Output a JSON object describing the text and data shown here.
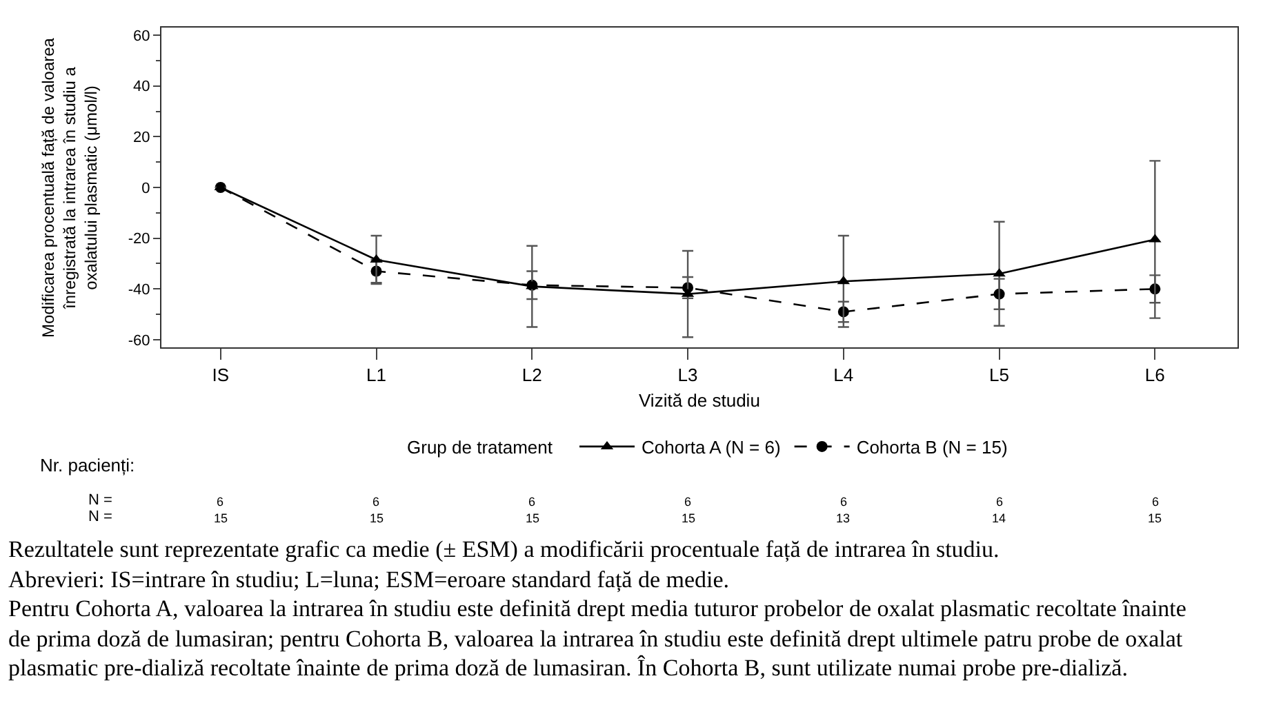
{
  "chart_data": {
    "type": "line",
    "xlabel": "Vizită de studiu",
    "ylabel": "Modificarea procentuală față de valoarea înregistrată la intrarea în studiu a oxalatului plasmatic (μmol/l)",
    "legend_title": "Grup de tratament",
    "categories": [
      "IS",
      "L1",
      "L2",
      "L3",
      "L4",
      "L5",
      "L6"
    ],
    "series": [
      {
        "name": "Cohorta A (N = 6)",
        "color": "#000000",
        "marker": "triangle",
        "line_style": "solid",
        "values": [
          0,
          -28.5,
          -39,
          -42,
          -37,
          -34,
          -20.5
        ],
        "errors": [
          null,
          9.5,
          16,
          17,
          18,
          20.5,
          31
        ]
      },
      {
        "name": "Cohorta B (N = 15)",
        "color": "#000000",
        "marker": "circle",
        "line_style": "dashed",
        "values": [
          0,
          -33,
          -38.5,
          -39.5,
          -49,
          -42,
          -40
        ],
        "errors": [
          null,
          4.5,
          5.5,
          4.2,
          4,
          6,
          5.4
        ]
      }
    ],
    "ylim": [
      -63,
      63
    ],
    "yticks": [
      -60,
      -40,
      -20,
      0,
      20,
      40,
      60
    ],
    "legend": "bottom",
    "annotations": [
      "Nr. pacienți:",
      "N =",
      "6",
      "6",
      "6",
      "6",
      "6",
      "6",
      "6",
      "N =",
      "15",
      "15",
      "15",
      "15",
      "13",
      "14",
      "15",
      "Rezultatele sunt reprezentate grafic ca medie (± ESM) a modificării procentuale față de intrarea în studiu.",
      "Abrevieri: IS=intrare în studiu; L=luna; ESM=eroare standard față de medie.",
      "Pentru Cohorta A, valoarea la intrarea în studiu este definită drept media tuturor probelor de oxalat plasmatic recoltate înainte de prima doză de lumasiran; pentru Cohorta B, valoarea la intrarea în studiu este definită drept ultimele patru probe de oxalat plasmatic pre-dializă recoltate înainte de prima doză de lumasiran. În Cohorta B, sunt utilizate numai probe pre-dializă."
    ]
  }
}
